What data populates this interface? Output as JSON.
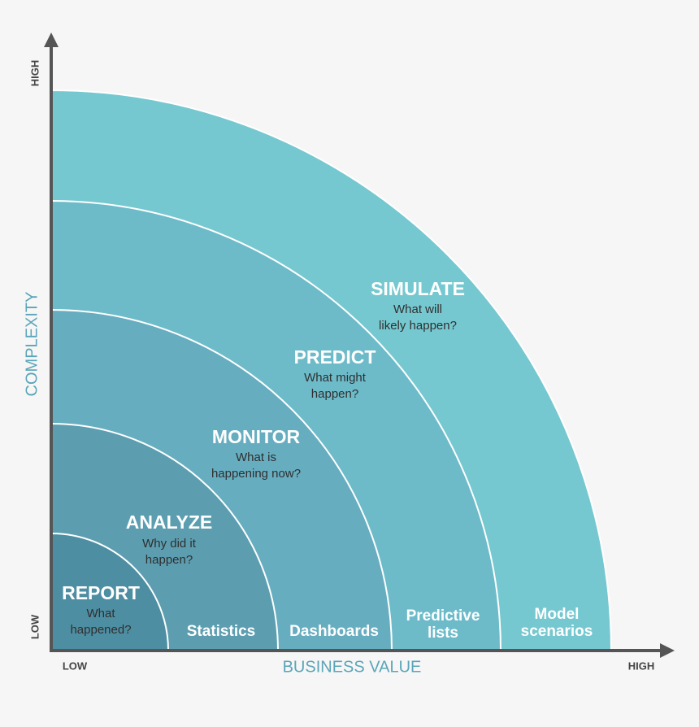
{
  "axes": {
    "y_title": "COMPLEXITY",
    "y_high": "HIGH",
    "y_low": "LOW",
    "x_title": "BUSINESS VALUE",
    "x_low": "LOW",
    "x_high": "HIGH"
  },
  "rings": [
    {
      "title": "REPORT",
      "question": [
        "What",
        "happened?"
      ]
    },
    {
      "title": "ANALYZE",
      "question": [
        "Why did it",
        "happen?"
      ],
      "tool": [
        "Statistics"
      ]
    },
    {
      "title": "MONITOR",
      "question": [
        "What is",
        "happening now?"
      ],
      "tool": [
        "Dashboards"
      ]
    },
    {
      "title": "PREDICT",
      "question": [
        "What might",
        "happen?"
      ],
      "tool": [
        "Predictive",
        "lists"
      ]
    },
    {
      "title": "SIMULATE",
      "question": [
        "What will",
        "likely happen?"
      ],
      "tool": [
        "Model",
        "scenarios"
      ]
    }
  ]
}
